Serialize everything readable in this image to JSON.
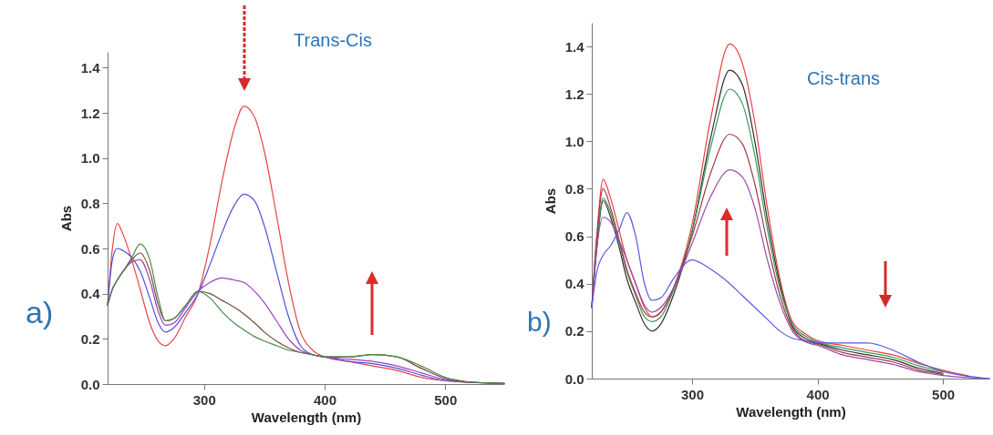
{
  "chart_data": [
    {
      "type": "line",
      "xlabel": "Wavelength (nm)",
      "ylabel": "Abs",
      "annotations": [
        "Trans-Cis",
        "a)"
      ],
      "xlim": [
        220,
        549
      ],
      "ylim": [
        0,
        1.47
      ],
      "xticks": [
        300,
        400,
        500
      ],
      "yticks": [
        {
          "value": 0,
          "label": "0.0"
        },
        {
          "value": 0.2,
          "label": "0.2"
        },
        {
          "value": 0.4,
          "label": "0.4"
        },
        {
          "value": 0.6,
          "label": "0.6"
        },
        {
          "value": 0.8,
          "label": "0.8"
        },
        {
          "value": 1,
          "label": "1.0"
        },
        {
          "value": 1.2,
          "label": "1.2"
        },
        {
          "value": 1.4,
          "label": "1.4"
        }
      ],
      "x": [
        220,
        224,
        228,
        233,
        240,
        247,
        255,
        262,
        268,
        275,
        285,
        295,
        305,
        315,
        325,
        333,
        342,
        350,
        360,
        370,
        380,
        390,
        400,
        420,
        440,
        460,
        480,
        500,
        520,
        549
      ],
      "series": [
        {
          "color": "#e8434a",
          "values": [
            0.35,
            0.6,
            0.71,
            0.66,
            0.55,
            0.42,
            0.27,
            0.19,
            0.17,
            0.2,
            0.3,
            0.4,
            0.62,
            0.9,
            1.13,
            1.23,
            1.18,
            1.03,
            0.75,
            0.45,
            0.23,
            0.15,
            0.12,
            0.1,
            0.08,
            0.06,
            0.03,
            0.015,
            0.008,
            0.003
          ]
        },
        {
          "color": "#4f4fd8",
          "values": [
            0.35,
            0.55,
            0.6,
            0.59,
            0.56,
            0.5,
            0.38,
            0.27,
            0.23,
            0.25,
            0.32,
            0.4,
            0.53,
            0.67,
            0.79,
            0.84,
            0.81,
            0.7,
            0.5,
            0.3,
            0.17,
            0.13,
            0.12,
            0.1,
            0.09,
            0.07,
            0.04,
            0.015,
            0.008,
            0.003
          ]
        },
        {
          "color": "#a040c0",
          "values": [
            0.35,
            0.42,
            0.46,
            0.5,
            0.54,
            0.55,
            0.46,
            0.32,
            0.26,
            0.27,
            0.34,
            0.41,
            0.45,
            0.47,
            0.46,
            0.45,
            0.41,
            0.36,
            0.28,
            0.2,
            0.15,
            0.13,
            0.12,
            0.11,
            0.1,
            0.08,
            0.05,
            0.02,
            0.008,
            0.003
          ]
        },
        {
          "color": "#7a4a3a",
          "values": [
            0.35,
            0.42,
            0.46,
            0.5,
            0.55,
            0.58,
            0.5,
            0.35,
            0.28,
            0.29,
            0.35,
            0.41,
            0.4,
            0.37,
            0.34,
            0.31,
            0.27,
            0.23,
            0.19,
            0.16,
            0.14,
            0.13,
            0.12,
            0.12,
            0.13,
            0.12,
            0.07,
            0.025,
            0.008,
            0.003
          ]
        },
        {
          "color": "#4a8a4a",
          "values": [
            0.35,
            0.42,
            0.46,
            0.5,
            0.56,
            0.62,
            0.55,
            0.38,
            0.28,
            0.29,
            0.35,
            0.41,
            0.38,
            0.32,
            0.27,
            0.24,
            0.21,
            0.19,
            0.17,
            0.15,
            0.14,
            0.13,
            0.12,
            0.12,
            0.13,
            0.12,
            0.08,
            0.03,
            0.01,
            0.003
          ]
        }
      ]
    },
    {
      "type": "line",
      "xlabel": "Wavelength (nm)",
      "ylabel": "Abs",
      "annotations": [
        "Cis-trans",
        "b)"
      ],
      "xlim": [
        220,
        537
      ],
      "ylim": [
        0,
        1.5
      ],
      "xticks": [
        300,
        400,
        500
      ],
      "yticks": [
        {
          "value": 0,
          "label": "0.0"
        },
        {
          "value": 0.2,
          "label": "0.2"
        },
        {
          "value": 0.4,
          "label": "0.4"
        },
        {
          "value": 0.6,
          "label": "0.6"
        },
        {
          "value": 0.8,
          "label": "0.8"
        },
        {
          "value": 1,
          "label": "1.0"
        },
        {
          "value": 1.2,
          "label": "1.2"
        },
        {
          "value": 1.4,
          "label": "1.4"
        }
      ],
      "x": [
        220,
        224,
        229,
        235,
        242,
        248,
        255,
        262,
        268,
        275,
        285,
        300,
        315,
        330,
        340,
        350,
        360,
        370,
        380,
        390,
        400,
        420,
        440,
        460,
        480,
        500,
        520,
        537
      ],
      "series": [
        {
          "color": "#e84040",
          "values": [
            0.3,
            0.6,
            0.84,
            0.76,
            0.62,
            0.5,
            0.4,
            0.3,
            0.26,
            0.28,
            0.38,
            0.65,
            1.1,
            1.41,
            1.33,
            1.08,
            0.72,
            0.42,
            0.24,
            0.19,
            0.16,
            0.14,
            0.12,
            0.1,
            0.065,
            0.035,
            0.012,
            null
          ]
        },
        {
          "color": "#303030",
          "values": [
            0.3,
            0.55,
            0.75,
            0.68,
            0.55,
            0.42,
            0.32,
            0.23,
            0.2,
            0.23,
            0.35,
            0.62,
            1.02,
            1.3,
            1.24,
            1.0,
            0.67,
            0.4,
            0.22,
            0.17,
            0.15,
            0.12,
            0.1,
            0.08,
            0.045,
            0.022,
            null,
            null
          ]
        },
        {
          "color": "#3a9a5a",
          "values": [
            0.3,
            0.56,
            0.76,
            0.7,
            0.57,
            0.45,
            0.35,
            0.26,
            0.24,
            0.26,
            0.37,
            0.62,
            0.98,
            1.22,
            1.16,
            0.94,
            0.63,
            0.38,
            0.23,
            0.18,
            0.155,
            0.13,
            0.11,
            0.09,
            0.055,
            0.028,
            null,
            null
          ]
        },
        {
          "color": "#a03a4a",
          "values": [
            0.3,
            0.6,
            0.8,
            0.72,
            0.58,
            0.46,
            0.36,
            0.28,
            0.26,
            0.28,
            0.38,
            0.6,
            0.87,
            1.03,
            0.99,
            0.82,
            0.57,
            0.35,
            0.21,
            0.16,
            0.145,
            0.11,
            0.09,
            0.07,
            0.037,
            0.017,
            null,
            null
          ]
        },
        {
          "color": "#9a4aa8",
          "values": [
            0.3,
            0.55,
            0.68,
            0.66,
            0.58,
            0.5,
            0.4,
            0.31,
            0.28,
            0.3,
            0.38,
            0.57,
            0.77,
            0.88,
            0.85,
            0.72,
            0.5,
            0.32,
            0.2,
            0.155,
            0.14,
            0.1,
            0.08,
            0.06,
            0.03,
            0.013,
            0.004,
            0.0
          ]
        },
        {
          "color": "#5a5ae0",
          "values": [
            0.3,
            0.45,
            0.52,
            0.56,
            0.63,
            0.7,
            0.6,
            0.4,
            0.33,
            0.34,
            0.42,
            0.5,
            0.46,
            0.4,
            0.35,
            0.3,
            0.25,
            0.2,
            0.17,
            0.16,
            0.15,
            0.15,
            0.15,
            0.12,
            0.07,
            0.03,
            0.01,
            0.0
          ]
        }
      ]
    }
  ]
}
